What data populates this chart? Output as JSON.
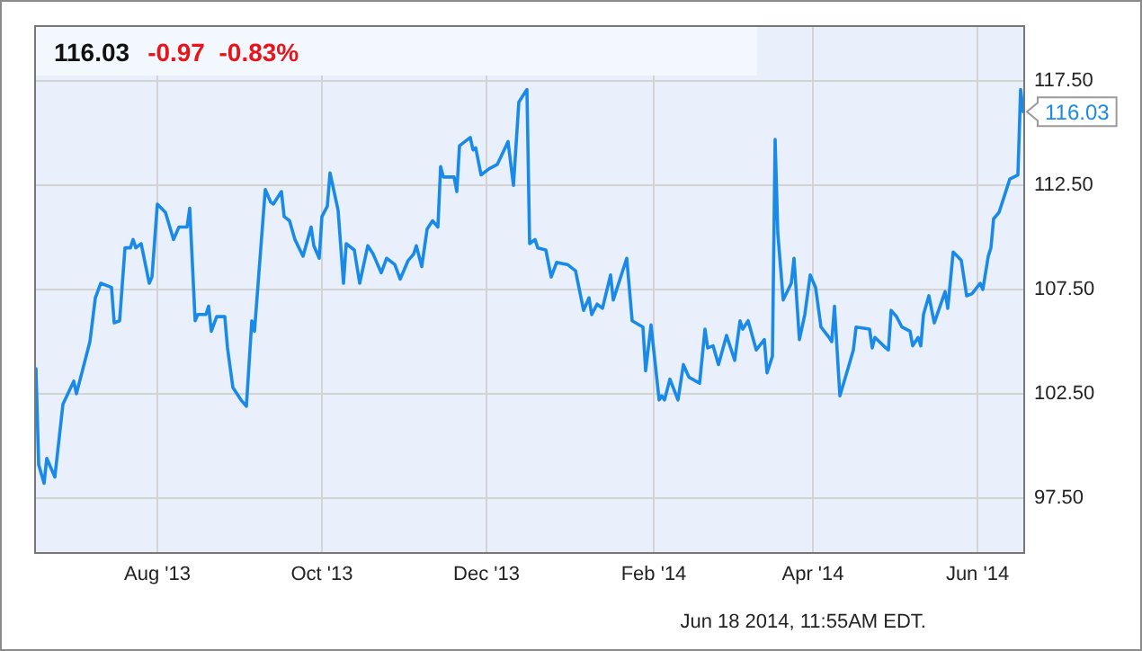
{
  "chart_data": {
    "type": "line",
    "title": "116.03",
    "subtitle": "-0.97  -0.83%",
    "annotations": [
      "Jun 18 2014, 11:55AM EDT.",
      {
        "text": "116.03",
        "x": "2014-06-18",
        "y": 116.03
      }
    ],
    "x": [
      "2013-06-17",
      "2013-06-18",
      "2013-06-20",
      "2013-06-21",
      "2013-06-24",
      "2013-06-27",
      "2013-07-01",
      "2013-07-02",
      "2013-07-07",
      "2013-07-09",
      "2013-07-11",
      "2013-07-15",
      "2013-07-16",
      "2013-07-18",
      "2013-07-20",
      "2013-07-22",
      "2013-07-23",
      "2013-07-24",
      "2013-07-26",
      "2013-07-29",
      "2013-07-30",
      "2013-08-01",
      "2013-08-04",
      "2013-08-07",
      "2013-08-09",
      "2013-08-12",
      "2013-08-13",
      "2013-08-15",
      "2013-08-16",
      "2013-08-19",
      "2013-08-20",
      "2013-08-21",
      "2013-08-23",
      "2013-08-26",
      "2013-08-27",
      "2013-08-29",
      "2013-09-01",
      "2013-09-03",
      "2013-09-05",
      "2013-09-06",
      "2013-09-10",
      "2013-09-12",
      "2013-09-13",
      "2013-09-16",
      "2013-09-17",
      "2013-09-19",
      "2013-09-21",
      "2013-09-24",
      "2013-09-27",
      "2013-09-28",
      "2013-09-30",
      "2013-10-01",
      "2013-10-03",
      "2013-10-04",
      "2013-10-07",
      "2013-10-09",
      "2013-10-10",
      "2013-10-13",
      "2013-10-15",
      "2013-10-18",
      "2013-10-20",
      "2013-10-23",
      "2013-10-25",
      "2013-10-28",
      "2013-10-30",
      "2013-11-02",
      "2013-11-04",
      "2013-11-05",
      "2013-11-07",
      "2013-11-09",
      "2013-11-11",
      "2013-11-13",
      "2013-11-14",
      "2013-11-15",
      "2013-11-19",
      "2013-11-20",
      "2013-11-21",
      "2013-11-25",
      "2013-11-26",
      "2013-11-27",
      "2013-11-29",
      "2013-12-02",
      "2013-12-05",
      "2013-12-09",
      "2013-12-11",
      "2013-12-13",
      "2013-12-16",
      "2013-12-17",
      "2013-12-19",
      "2013-12-20",
      "2013-12-23",
      "2013-12-25",
      "2013-12-27",
      "2013-12-31",
      "2014-01-03",
      "2014-01-06",
      "2014-01-08",
      "2014-01-09",
      "2014-01-11",
      "2014-01-13",
      "2014-01-16",
      "2014-01-17",
      "2014-01-22",
      "2014-01-24",
      "2014-01-28",
      "2014-01-29",
      "2014-01-31",
      "2014-02-03",
      "2014-02-04",
      "2014-02-05",
      "2014-02-07",
      "2014-02-10",
      "2014-02-12",
      "2014-02-14",
      "2014-02-18",
      "2014-02-20",
      "2014-02-21",
      "2014-02-23",
      "2014-02-25",
      "2014-02-28",
      "2014-03-03",
      "2014-03-05",
      "2014-03-06",
      "2014-03-08",
      "2014-03-11",
      "2014-03-14",
      "2014-03-15",
      "2014-03-17",
      "2014-03-18",
      "2014-03-19",
      "2014-03-21",
      "2014-03-24",
      "2014-03-25",
      "2014-03-27",
      "2014-03-29",
      "2014-03-31",
      "2014-04-02",
      "2014-04-04",
      "2014-04-07",
      "2014-04-08",
      "2014-04-09",
      "2014-04-11",
      "2014-04-14",
      "2014-04-16",
      "2014-04-17",
      "2014-04-22",
      "2014-04-23",
      "2014-04-24",
      "2014-04-28",
      "2014-04-29",
      "2014-04-30",
      "2014-05-02",
      "2014-05-04",
      "2014-05-07",
      "2014-05-08",
      "2014-05-10",
      "2014-05-11",
      "2014-05-12",
      "2014-05-14",
      "2014-05-16",
      "2014-05-20",
      "2014-05-21",
      "2014-05-23",
      "2014-05-26",
      "2014-05-28",
      "2014-05-30",
      "2014-06-02",
      "2014-06-03",
      "2014-06-05",
      "2014-06-06",
      "2014-06-07",
      "2014-06-09",
      "2014-06-13",
      "2014-06-16",
      "2014-06-17",
      "2014-06-18"
    ],
    "series": [
      {
        "color": "#1a8ae8",
        "values": [
          103.7,
          99.1,
          98.2,
          99.4,
          98.5,
          102.0,
          103.1,
          102.5,
          105.0,
          107.1,
          107.8,
          107.6,
          105.9,
          106.0,
          109.5,
          109.5,
          109.9,
          109.5,
          109.7,
          107.8,
          108.1,
          111.6,
          111.2,
          109.9,
          110.5,
          110.5,
          111.4,
          106.0,
          106.3,
          106.3,
          106.7,
          105.5,
          106.2,
          106.2,
          104.7,
          102.8,
          102.2,
          101.9,
          106.0,
          105.5,
          112.3,
          111.7,
          111.6,
          112.2,
          111.0,
          110.8,
          109.9,
          109.1,
          110.5,
          109.6,
          109.0,
          111.0,
          111.5,
          113.1,
          111.3,
          107.8,
          109.7,
          109.4,
          107.8,
          109.6,
          109.2,
          108.3,
          109.0,
          108.7,
          108.0,
          108.9,
          109.2,
          109.6,
          108.6,
          110.4,
          110.8,
          110.5,
          113.4,
          112.9,
          112.9,
          112.2,
          114.4,
          114.8,
          114.2,
          114.3,
          113.0,
          113.3,
          113.5,
          114.6,
          112.5,
          116.5,
          117.1,
          109.7,
          109.9,
          109.5,
          109.4,
          108.1,
          108.8,
          108.7,
          108.4,
          106.5,
          107.1,
          106.3,
          106.8,
          106.6,
          108.2,
          107.0,
          109.0,
          106.0,
          105.7,
          103.6,
          105.8,
          102.2,
          102.4,
          102.2,
          103.2,
          102.2,
          103.9,
          103.3,
          103.0,
          105.6,
          104.7,
          104.8,
          103.9,
          105.3,
          104.1,
          106.0,
          105.6,
          106.0,
          104.6,
          105.1,
          103.5,
          104.3,
          114.7,
          110.2,
          107.0,
          107.8,
          109.0,
          105.1,
          106.3,
          108.2,
          107.6,
          105.7,
          105.2,
          105.0,
          106.7,
          102.4,
          103.7,
          104.6,
          105.7,
          105.6,
          104.7,
          105.2,
          104.7,
          104.6,
          106.5,
          106.2,
          105.7,
          105.5,
          104.8,
          105.2,
          104.8,
          106.3,
          107.2,
          105.9,
          107.4,
          106.6,
          109.3,
          108.9,
          107.2,
          107.3,
          107.8,
          107.5,
          109.1,
          109.5,
          110.9,
          111.2,
          112.8,
          113.0,
          117.1,
          116.03
        ]
      }
    ],
    "xlim": [
      "2013-06-17",
      "2014-06-18"
    ],
    "xticks": [
      {
        "value": "2013-08-01",
        "label": "Aug '13"
      },
      {
        "value": "2013-10-01",
        "label": "Oct '13"
      },
      {
        "value": "2013-12-01",
        "label": "Dec '13"
      },
      {
        "value": "2014-02-01",
        "label": "Feb '14"
      },
      {
        "value": "2014-04-01",
        "label": "Apr '14"
      },
      {
        "value": "2014-06-01",
        "label": "Jun '14"
      }
    ],
    "ylim": [
      94.9,
      120.1
    ],
    "yticks": [
      {
        "value": 97.5,
        "label": "97.50"
      },
      {
        "value": 102.5,
        "label": "102.50"
      },
      {
        "value": 107.5,
        "label": "107.50"
      },
      {
        "value": 112.5,
        "label": "112.50"
      },
      {
        "value": 117.5,
        "label": "117.50"
      }
    ],
    "grid": true,
    "legend": false,
    "marker": "none",
    "line_style": "solid"
  }
}
